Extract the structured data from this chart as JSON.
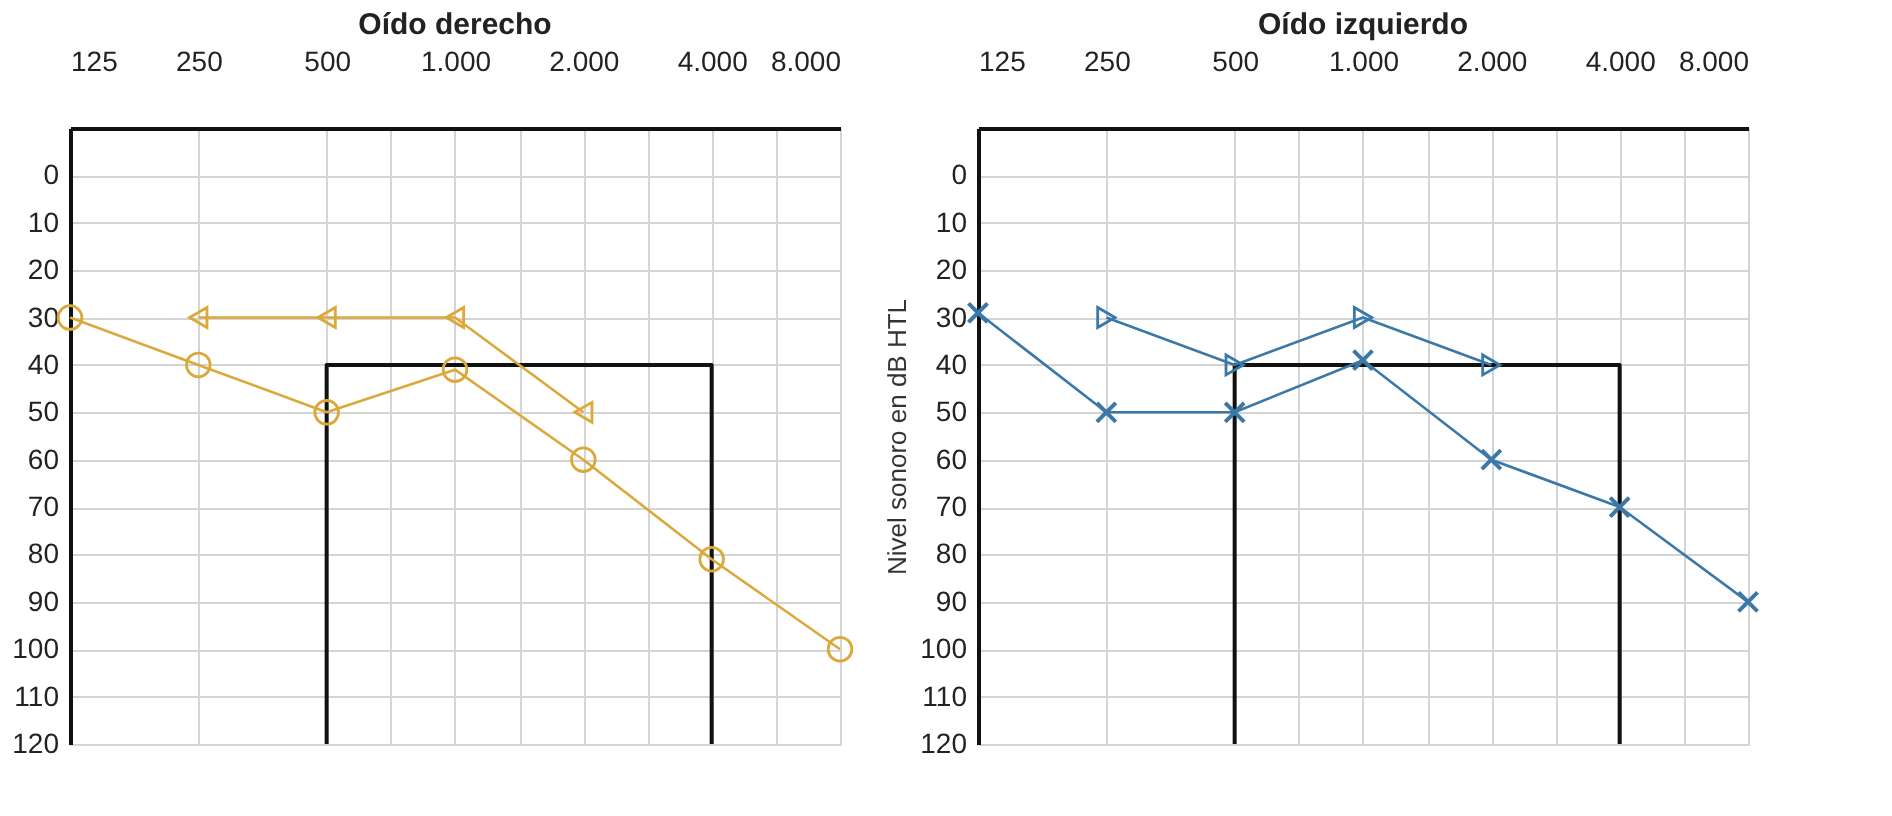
{
  "chart_data": [
    {
      "type": "line",
      "title": "Oído derecho",
      "log": "x",
      "grid": true,
      "xlim": [
        125,
        8000
      ],
      "ylim": [
        120,
        -10
      ],
      "xticks": [
        125,
        250,
        500,
        {
          "value": 707,
          "label": null
        },
        {
          "value": 1000,
          "label": "1.000"
        },
        {
          "value": 1414,
          "label": null
        },
        {
          "value": 2000,
          "label": "2.000"
        },
        {
          "value": 2828,
          "label": null
        },
        {
          "value": 4000,
          "label": "4.000"
        },
        {
          "value": 5657,
          "label": null
        },
        {
          "value": 8000,
          "label": "8.000"
        }
      ],
      "yticks": [
        0,
        10,
        20,
        30,
        40,
        50,
        60,
        70,
        80,
        90,
        100,
        110,
        120
      ],
      "series": [
        {
          "color": "#111111",
          "marker": "none",
          "x": [
            500,
            500,
            4000,
            4000
          ],
          "values": [
            120,
            40,
            40,
            120
          ]
        },
        {
          "color": "#dba93a",
          "marker": "circle",
          "x": [
            125,
            250,
            500,
            1000,
            2000,
            4000,
            8000
          ],
          "values": [
            30,
            40,
            50,
            41,
            60,
            81,
            100
          ]
        },
        {
          "color": "#dba93a",
          "marker": "triangle",
          "x": [
            250,
            500,
            1000,
            2000
          ],
          "values": [
            30,
            30,
            30,
            50
          ]
        }
      ]
    },
    {
      "type": "line",
      "title": "Oído izquierdo",
      "ylabel": "Nivel sonoro en dB HTL",
      "log": "x",
      "grid": true,
      "xlim": [
        125,
        8000
      ],
      "ylim": [
        120,
        -10
      ],
      "xticks": [
        125,
        250,
        500,
        {
          "value": 707,
          "label": null
        },
        {
          "value": 1000,
          "label": "1.000"
        },
        {
          "value": 1414,
          "label": null
        },
        {
          "value": 2000,
          "label": "2.000"
        },
        {
          "value": 2828,
          "label": null
        },
        {
          "value": 4000,
          "label": "4.000"
        },
        {
          "value": 5657,
          "label": null
        },
        {
          "value": 8000,
          "label": "8.000"
        }
      ],
      "yticks": [
        0,
        10,
        20,
        30,
        40,
        50,
        60,
        70,
        80,
        90,
        100,
        110,
        120
      ],
      "series": [
        {
          "color": "#111111",
          "marker": "none",
          "x": [
            500,
            500,
            4000,
            4000
          ],
          "values": [
            120,
            40,
            40,
            120
          ]
        },
        {
          "color": "#3a78a8",
          "marker": "cross",
          "x": [
            125,
            250,
            500,
            1000,
            2000,
            4000,
            8000
          ],
          "values": [
            29,
            50,
            50,
            39,
            60,
            70,
            90
          ]
        },
        {
          "color": "#3a78a8",
          "marker": "triangle",
          "x": [
            250,
            500,
            1000,
            2000
          ],
          "values": [
            30,
            40,
            30,
            40
          ]
        }
      ]
    }
  ]
}
